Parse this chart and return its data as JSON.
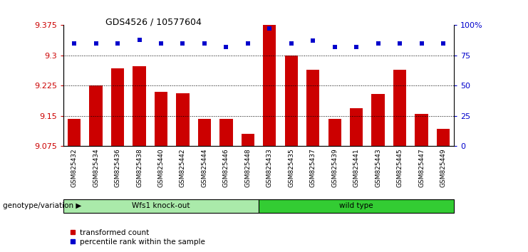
{
  "title": "GDS4526 / 10577604",
  "categories": [
    "GSM825432",
    "GSM825434",
    "GSM825436",
    "GSM825438",
    "GSM825440",
    "GSM825442",
    "GSM825444",
    "GSM825446",
    "GSM825448",
    "GSM825433",
    "GSM825435",
    "GSM825437",
    "GSM825439",
    "GSM825441",
    "GSM825443",
    "GSM825445",
    "GSM825447",
    "GSM825449"
  ],
  "bar_values": [
    9.143,
    9.225,
    9.268,
    9.273,
    9.21,
    9.207,
    9.143,
    9.143,
    9.105,
    9.375,
    9.3,
    9.265,
    9.143,
    9.17,
    9.205,
    9.265,
    9.155,
    9.118
  ],
  "percentile_values": [
    85,
    85,
    85,
    88,
    85,
    85,
    85,
    82,
    85,
    97,
    85,
    87,
    82,
    82,
    85,
    85,
    85,
    85
  ],
  "group1_label": "Wfs1 knock-out",
  "group2_label": "wild type",
  "group1_count": 9,
  "group2_count": 9,
  "group1_color": "#aaeaaa",
  "group2_color": "#33cc33",
  "bar_color": "#cc0000",
  "dot_color": "#0000cc",
  "ylim": [
    9.075,
    9.375
  ],
  "y_ticks": [
    9.075,
    9.15,
    9.225,
    9.3,
    9.375
  ],
  "y_right_ticks": [
    0,
    25,
    50,
    75,
    100
  ],
  "legend_items": [
    "transformed count",
    "percentile rank within the sample"
  ],
  "genotype_label": "genotype/variation",
  "bar_width": 0.6
}
